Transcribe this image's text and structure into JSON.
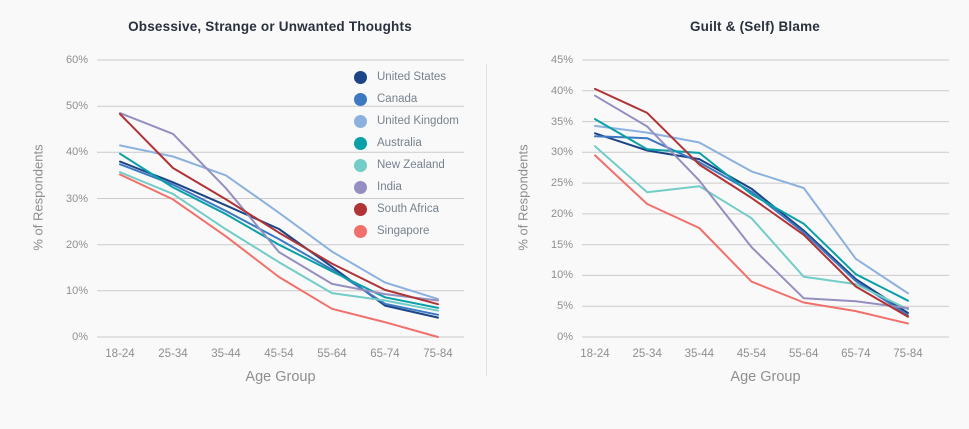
{
  "page_background": "#f9f9f9",
  "gridline_color": "#cccbcb",
  "chart_data": [
    {
      "type": "line",
      "title": "Obsessive, Strange or Unwanted Thoughts",
      "xlabel": "Age Group",
      "ylabel": "% of Respondents",
      "categories": [
        "18-24",
        "25-34",
        "35-44",
        "45-54",
        "55-64",
        "65-74",
        "75-84"
      ],
      "ylim": [
        0,
        60
      ],
      "ytick_step": 10,
      "ytick_suffix": "%",
      "grid": "horizontal",
      "legend": true,
      "legend_position": "top-right-inside",
      "series": [
        {
          "name": "United States",
          "color": "#1b4586",
          "values": [
            38.0,
            33.5,
            28.5,
            23.4,
            15.2,
            6.8,
            4.2
          ]
        },
        {
          "name": "Canada",
          "color": "#3d79c2",
          "values": [
            37.4,
            33.0,
            27.3,
            21.2,
            14.6,
            7.2,
            4.8
          ]
        },
        {
          "name": "United Kingdom",
          "color": "#8cb1de",
          "values": [
            41.5,
            39.1,
            35.0,
            26.9,
            18.5,
            11.8,
            8.2
          ]
        },
        {
          "name": "Australia",
          "color": "#0aa0a8",
          "values": [
            39.7,
            32.4,
            26.6,
            20.0,
            14.2,
            8.6,
            6.3
          ]
        },
        {
          "name": "New Zealand",
          "color": "#72ccc7",
          "values": [
            35.7,
            31.0,
            23.3,
            16.2,
            9.5,
            7.9,
            5.7
          ]
        },
        {
          "name": "India",
          "color": "#948fc0",
          "values": [
            48.5,
            44.0,
            32.2,
            18.4,
            11.5,
            9.3,
            7.9
          ]
        },
        {
          "name": "South Africa",
          "color": "#b03336",
          "values": [
            48.3,
            36.6,
            29.8,
            22.6,
            15.9,
            10.2,
            7.1
          ]
        },
        {
          "name": "Singapore",
          "color": "#f2706b",
          "values": [
            35.2,
            29.8,
            21.8,
            13.0,
            6.1,
            3.2,
            0.0
          ]
        }
      ]
    },
    {
      "type": "line",
      "title": "Guilt & (Self) Blame",
      "xlabel": "Age Group",
      "ylabel": "% of Respondents",
      "categories": [
        "18-24",
        "25-34",
        "35-44",
        "45-54",
        "55-64",
        "65-74",
        "75-84"
      ],
      "ylim": [
        0,
        45
      ],
      "ytick_step": 5,
      "ytick_suffix": "%",
      "grid": "horizontal",
      "legend": false,
      "series": [
        {
          "name": "United States",
          "color": "#1b4586",
          "values": [
            33.1,
            30.3,
            28.9,
            24.1,
            17.3,
            9.4,
            3.9
          ]
        },
        {
          "name": "Canada",
          "color": "#3d79c2",
          "values": [
            32.6,
            32.3,
            28.4,
            23.6,
            17.0,
            9.1,
            3.5
          ]
        },
        {
          "name": "United Kingdom",
          "color": "#8cb1de",
          "values": [
            34.3,
            33.2,
            31.6,
            26.9,
            24.2,
            12.7,
            7.1
          ]
        },
        {
          "name": "Australia",
          "color": "#0aa0a8",
          "values": [
            35.4,
            30.5,
            29.9,
            23.2,
            18.4,
            10.2,
            5.9
          ]
        },
        {
          "name": "New Zealand",
          "color": "#72ccc7",
          "values": [
            31.0,
            23.5,
            24.5,
            19.3,
            9.8,
            8.6,
            4.5
          ]
        },
        {
          "name": "India",
          "color": "#948fc0",
          "values": [
            39.2,
            34.2,
            25.4,
            14.6,
            6.3,
            5.8,
            4.7
          ]
        },
        {
          "name": "South Africa",
          "color": "#b03336",
          "values": [
            40.3,
            36.4,
            28.0,
            22.6,
            16.6,
            8.2,
            3.3
          ]
        },
        {
          "name": "Singapore",
          "color": "#f2706b",
          "values": [
            29.5,
            21.6,
            17.7,
            9.0,
            5.6,
            4.2,
            2.2
          ]
        }
      ]
    }
  ]
}
